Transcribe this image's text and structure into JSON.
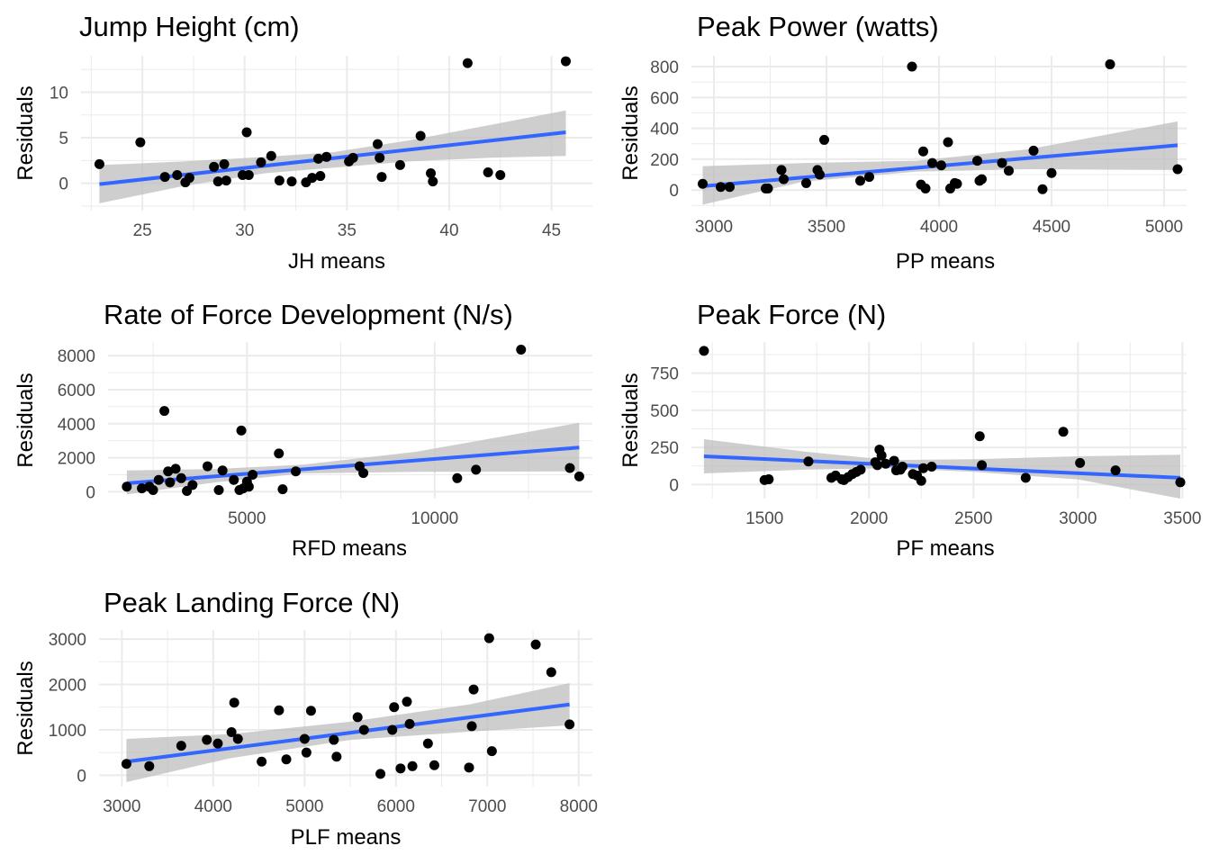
{
  "chart_data": [
    {
      "type": "scatter",
      "title": "Jump Height (cm)",
      "xlabel": "JH means",
      "ylabel": "Residuals",
      "xlim": [
        22,
        47
      ],
      "ylim": [
        -3,
        14
      ],
      "xticks": [
        25,
        30,
        35,
        40,
        45
      ],
      "yticks": [
        0,
        5,
        10
      ],
      "grid": true,
      "points": [
        [
          22.9,
          2.1
        ],
        [
          24.9,
          4.5
        ],
        [
          26.1,
          0.7
        ],
        [
          26.7,
          0.9
        ],
        [
          27.1,
          0.1
        ],
        [
          27.3,
          0.6
        ],
        [
          28.5,
          1.8
        ],
        [
          28.7,
          0.2
        ],
        [
          29.0,
          2.1
        ],
        [
          29.1,
          0.3
        ],
        [
          29.9,
          0.9
        ],
        [
          30.1,
          5.6
        ],
        [
          30.2,
          0.9
        ],
        [
          30.8,
          2.3
        ],
        [
          31.3,
          3.0
        ],
        [
          31.7,
          0.3
        ],
        [
          32.3,
          0.2
        ],
        [
          33.0,
          0.1
        ],
        [
          33.3,
          0.6
        ],
        [
          33.6,
          2.7
        ],
        [
          33.7,
          0.8
        ],
        [
          34.0,
          2.9
        ],
        [
          35.1,
          2.4
        ],
        [
          35.3,
          2.8
        ],
        [
          36.5,
          4.3
        ],
        [
          36.6,
          2.8
        ],
        [
          36.7,
          0.7
        ],
        [
          37.6,
          2.0
        ],
        [
          38.6,
          5.2
        ],
        [
          39.1,
          1.1
        ],
        [
          39.2,
          0.2
        ],
        [
          40.9,
          13.2
        ],
        [
          41.9,
          1.2
        ],
        [
          42.5,
          0.9
        ],
        [
          45.7,
          13.4
        ]
      ],
      "trend": {
        "x": [
          22.9,
          45.7
        ],
        "y": [
          -0.1,
          5.6
        ]
      },
      "band": {
        "x": [
          22.9,
          27,
          31,
          34.3,
          38,
          42,
          45.7
        ],
        "lower": [
          -2.2,
          -0.3,
          1.1,
          1.7,
          2.4,
          2.8,
          3.0
        ],
        "upper": [
          2.0,
          2.4,
          2.9,
          3.4,
          4.7,
          6.4,
          8.0
        ]
      }
    },
    {
      "type": "scatter",
      "title": "Peak Power (watts)",
      "xlabel": "PP means",
      "ylabel": "Residuals",
      "xlim": [
        2900,
        5100
      ],
      "ylim": [
        -110,
        870
      ],
      "xticks": [
        3000,
        3500,
        4000,
        4500,
        5000
      ],
      "yticks": [
        0,
        200,
        400,
        600,
        800
      ],
      "grid": true,
      "points": [
        [
          2950,
          40
        ],
        [
          3030,
          20
        ],
        [
          3070,
          20
        ],
        [
          3230,
          10
        ],
        [
          3240,
          10
        ],
        [
          3300,
          130
        ],
        [
          3310,
          70
        ],
        [
          3410,
          45
        ],
        [
          3460,
          130
        ],
        [
          3470,
          100
        ],
        [
          3490,
          325
        ],
        [
          3650,
          60
        ],
        [
          3690,
          85
        ],
        [
          3880,
          800
        ],
        [
          3920,
          35
        ],
        [
          3930,
          250
        ],
        [
          3940,
          10
        ],
        [
          3970,
          175
        ],
        [
          4010,
          160
        ],
        [
          4040,
          310
        ],
        [
          4050,
          10
        ],
        [
          4070,
          45
        ],
        [
          4080,
          40
        ],
        [
          4170,
          190
        ],
        [
          4180,
          60
        ],
        [
          4190,
          70
        ],
        [
          4280,
          175
        ],
        [
          4310,
          125
        ],
        [
          4420,
          255
        ],
        [
          4460,
          5
        ],
        [
          4500,
          110
        ],
        [
          4760,
          815
        ],
        [
          5060,
          135
        ]
      ],
      "trend": {
        "x": [
          2950,
          5060
        ],
        "y": [
          25,
          290
        ]
      },
      "band": {
        "x": [
          2950,
          3400,
          3900,
          4400,
          5060
        ],
        "lower": [
          -95,
          55,
          120,
          135,
          130
        ],
        "upper": [
          155,
          175,
          190,
          265,
          445
        ]
      }
    },
    {
      "type": "scatter",
      "title": "Rate of Force Development (N/s)",
      "xlabel": "RFD means",
      "ylabel": "Residuals",
      "xlim": [
        1300,
        14200
      ],
      "ylim": [
        -400,
        8800
      ],
      "xticks": [
        5000,
        10000
      ],
      "yticks": [
        0,
        2000,
        4000,
        6000,
        8000
      ],
      "grid": true,
      "points": [
        [
          1800,
          300
        ],
        [
          2200,
          200
        ],
        [
          2400,
          300
        ],
        [
          2500,
          100
        ],
        [
          2650,
          700
        ],
        [
          2800,
          4750
        ],
        [
          2900,
          1200
        ],
        [
          2950,
          550
        ],
        [
          3100,
          1350
        ],
        [
          3250,
          800
        ],
        [
          3400,
          50
        ],
        [
          3550,
          400
        ],
        [
          3950,
          1500
        ],
        [
          4250,
          100
        ],
        [
          4350,
          1250
        ],
        [
          4650,
          700
        ],
        [
          4800,
          100
        ],
        [
          4850,
          3600
        ],
        [
          4900,
          200
        ],
        [
          5000,
          600
        ],
        [
          5050,
          300
        ],
        [
          5150,
          1000
        ],
        [
          5850,
          2250
        ],
        [
          5950,
          150
        ],
        [
          6300,
          1200
        ],
        [
          8000,
          1500
        ],
        [
          8100,
          1100
        ],
        [
          10600,
          800
        ],
        [
          11100,
          1300
        ],
        [
          12300,
          8350
        ],
        [
          13600,
          1400
        ],
        [
          13850,
          900
        ]
      ],
      "trend": {
        "x": [
          1800,
          13850
        ],
        "y": [
          500,
          2600
        ]
      },
      "band": {
        "x": [
          1800,
          4200,
          6500,
          9500,
          13850
        ],
        "lower": [
          -150,
          560,
          1080,
          1170,
          1200
        ],
        "upper": [
          1250,
          1340,
          1600,
          2350,
          4050
        ]
      }
    },
    {
      "type": "scatter",
      "title": "Peak Force (N)",
      "xlabel": "PF means",
      "ylabel": "Residuals",
      "xlim": [
        1150,
        3520
      ],
      "ylim": [
        -95,
        960
      ],
      "xticks": [
        1500,
        2000,
        2500,
        3000,
        3500
      ],
      "yticks": [
        0,
        250,
        500,
        750
      ],
      "grid": true,
      "points": [
        [
          1210,
          900
        ],
        [
          1500,
          30
        ],
        [
          1520,
          35
        ],
        [
          1710,
          155
        ],
        [
          1820,
          45
        ],
        [
          1840,
          60
        ],
        [
          1870,
          35
        ],
        [
          1880,
          30
        ],
        [
          1900,
          50
        ],
        [
          1920,
          70
        ],
        [
          1940,
          85
        ],
        [
          1960,
          100
        ],
        [
          2030,
          150
        ],
        [
          2040,
          130
        ],
        [
          2050,
          235
        ],
        [
          2060,
          195
        ],
        [
          2080,
          140
        ],
        [
          2120,
          160
        ],
        [
          2130,
          95
        ],
        [
          2150,
          100
        ],
        [
          2160,
          120
        ],
        [
          2210,
          70
        ],
        [
          2230,
          60
        ],
        [
          2250,
          25
        ],
        [
          2260,
          110
        ],
        [
          2300,
          120
        ],
        [
          2530,
          325
        ],
        [
          2540,
          130
        ],
        [
          2750,
          45
        ],
        [
          2930,
          355
        ],
        [
          3010,
          145
        ],
        [
          3180,
          95
        ],
        [
          3490,
          15
        ]
      ],
      "trend": {
        "x": [
          1210,
          3490
        ],
        "y": [
          190,
          45
        ]
      },
      "band": {
        "x": [
          1210,
          1700,
          2100,
          2500,
          3000,
          3490
        ],
        "lower": [
          75,
          100,
          110,
          85,
          35,
          -95
        ],
        "upper": [
          305,
          220,
          165,
          170,
          190,
          200
        ]
      }
    },
    {
      "type": "scatter",
      "title": "Peak Landing Force (N)",
      "xlabel": "PLF means",
      "ylabel": "Residuals",
      "xlim": [
        2750,
        8150
      ],
      "ylim": [
        -250,
        3200
      ],
      "xticks": [
        3000,
        4000,
        5000,
        6000,
        7000,
        8000
      ],
      "yticks": [
        0,
        1000,
        2000,
        3000
      ],
      "grid": true,
      "points": [
        [
          3050,
          250
        ],
        [
          3300,
          200
        ],
        [
          3650,
          650
        ],
        [
          3930,
          780
        ],
        [
          4050,
          700
        ],
        [
          4200,
          950
        ],
        [
          4230,
          1600
        ],
        [
          4270,
          800
        ],
        [
          4530,
          300
        ],
        [
          4720,
          1430
        ],
        [
          4800,
          350
        ],
        [
          5000,
          800
        ],
        [
          5020,
          500
        ],
        [
          5070,
          1420
        ],
        [
          5320,
          780
        ],
        [
          5350,
          410
        ],
        [
          5580,
          1280
        ],
        [
          5650,
          1000
        ],
        [
          5830,
          30
        ],
        [
          5960,
          1000
        ],
        [
          5980,
          1500
        ],
        [
          6050,
          150
        ],
        [
          6120,
          1620
        ],
        [
          6150,
          1130
        ],
        [
          6180,
          200
        ],
        [
          6350,
          700
        ],
        [
          6420,
          220
        ],
        [
          6800,
          170
        ],
        [
          6830,
          1080
        ],
        [
          6850,
          1890
        ],
        [
          7020,
          3020
        ],
        [
          7050,
          530
        ],
        [
          7530,
          2880
        ],
        [
          7700,
          2270
        ],
        [
          7900,
          1120
        ]
      ],
      "trend": {
        "x": [
          3050,
          7900
        ],
        "y": [
          300,
          1560
        ]
      },
      "band": {
        "x": [
          3050,
          4200,
          5500,
          6800,
          7900
        ],
        "lower": [
          -150,
          380,
          780,
          960,
          1100
        ],
        "upper": [
          800,
          910,
          1180,
          1560,
          2030
        ]
      }
    }
  ],
  "colors": {
    "points": "#000000",
    "trend": "#3366ff",
    "band": "#bdbdbd",
    "grid": "#ebebeb",
    "tick_text": "#4d4d4d"
  }
}
